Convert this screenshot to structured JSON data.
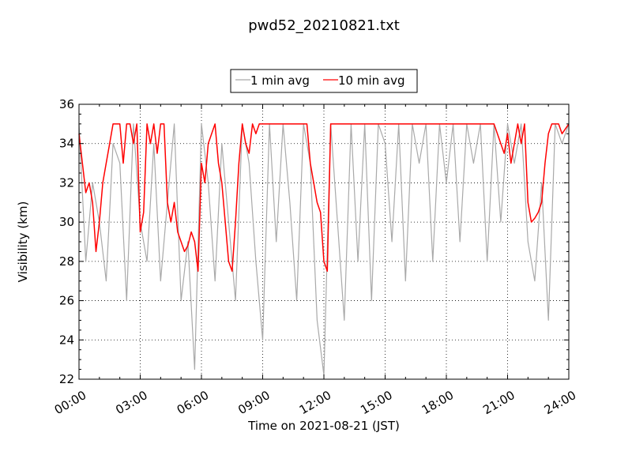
{
  "chart_data": {
    "type": "line",
    "title": "pwd52_20210821.txt",
    "xlabel": "Time on 2021-08-21 (JST)",
    "ylabel": "Visibility (km)",
    "xlim": [
      "00:00",
      "24:00"
    ],
    "ylim": [
      22,
      36
    ],
    "x_ticks": [
      "00:00",
      "03:00",
      "06:00",
      "09:00",
      "12:00",
      "15:00",
      "18:00",
      "21:00",
      "24:00"
    ],
    "y_ticks": [
      "22",
      "24",
      "26",
      "28",
      "30",
      "32",
      "34",
      "36"
    ],
    "grid": true,
    "legend_position": "top-center",
    "series": [
      {
        "name": "1 min avg",
        "color": "#a9a9a9",
        "x": [
          "00:00",
          "00:20",
          "00:40",
          "01:00",
          "01:20",
          "01:40",
          "02:00",
          "02:20",
          "02:40",
          "03:00",
          "03:20",
          "03:40",
          "04:00",
          "04:20",
          "04:40",
          "05:00",
          "05:20",
          "05:40",
          "06:00",
          "06:20",
          "06:40",
          "07:00",
          "07:20",
          "07:40",
          "08:00",
          "08:20",
          "08:40",
          "09:00",
          "09:20",
          "09:40",
          "10:00",
          "10:20",
          "10:40",
          "11:00",
          "11:20",
          "11:40",
          "12:00",
          "12:20",
          "12:40",
          "13:00",
          "13:20",
          "13:40",
          "14:00",
          "14:20",
          "14:40",
          "15:00",
          "15:20",
          "15:40",
          "16:00",
          "16:20",
          "16:40",
          "17:00",
          "17:20",
          "17:40",
          "18:00",
          "18:20",
          "18:40",
          "19:00",
          "19:20",
          "19:40",
          "20:00",
          "20:20",
          "20:40",
          "21:00",
          "21:20",
          "21:40",
          "22:00",
          "22:20",
          "22:40",
          "23:00",
          "23:20",
          "23:40",
          "24:00"
        ],
        "y": [
          35,
          28,
          32,
          30,
          27,
          34,
          33,
          26,
          35,
          30,
          28,
          34,
          27,
          31,
          35,
          26,
          29,
          22.5,
          35,
          32,
          27,
          34,
          30,
          26,
          35,
          33,
          28,
          24,
          35,
          29,
          35,
          31,
          26,
          35,
          33,
          25,
          22.2,
          35,
          30,
          25,
          35,
          28,
          35,
          26,
          35,
          34,
          29,
          35,
          27,
          35,
          33,
          35,
          28,
          35,
          32,
          35,
          29,
          35,
          33,
          35,
          28,
          35,
          30,
          35,
          33,
          35,
          29,
          27,
          32,
          25,
          35,
          34,
          35
        ]
      },
      {
        "name": "10 min avg",
        "color": "#ff0000",
        "x": [
          "00:00",
          "00:10",
          "00:20",
          "00:30",
          "00:40",
          "00:50",
          "01:00",
          "01:10",
          "01:20",
          "01:30",
          "01:40",
          "01:50",
          "02:00",
          "02:10",
          "02:20",
          "02:30",
          "02:40",
          "02:50",
          "03:00",
          "03:10",
          "03:20",
          "03:30",
          "03:40",
          "03:50",
          "04:00",
          "04:10",
          "04:20",
          "04:30",
          "04:40",
          "04:50",
          "05:00",
          "05:10",
          "05:20",
          "05:30",
          "05:40",
          "05:50",
          "06:00",
          "06:10",
          "06:20",
          "06:30",
          "06:40",
          "06:50",
          "07:00",
          "07:10",
          "07:20",
          "07:30",
          "07:40",
          "07:50",
          "08:00",
          "08:10",
          "08:20",
          "08:30",
          "08:40",
          "08:50",
          "09:00",
          "09:10",
          "09:20",
          "09:30",
          "09:40",
          "09:50",
          "10:00",
          "10:30",
          "11:00",
          "11:10",
          "11:20",
          "11:30",
          "11:40",
          "11:50",
          "12:00",
          "12:10",
          "12:20",
          "12:40",
          "13:00",
          "13:20",
          "13:40",
          "14:00",
          "14:20",
          "14:40",
          "15:00",
          "15:30",
          "16:00",
          "17:00",
          "18:00",
          "19:00",
          "20:00",
          "20:20",
          "20:40",
          "20:50",
          "21:00",
          "21:10",
          "21:20",
          "21:30",
          "21:40",
          "21:50",
          "22:00",
          "22:10",
          "22:20",
          "22:30",
          "22:40",
          "22:50",
          "23:00",
          "23:10",
          "23:20",
          "23:30",
          "23:40",
          "24:00"
        ],
        "y": [
          34.5,
          33,
          31.5,
          32,
          31,
          28.5,
          30,
          32,
          33,
          34,
          35,
          35,
          35,
          33,
          35,
          35,
          34,
          35,
          29.5,
          30.5,
          35,
          34,
          35,
          33.5,
          35,
          35,
          31,
          30,
          31,
          29.5,
          29,
          28.5,
          28.8,
          29.5,
          29,
          27.5,
          33,
          32,
          34,
          34.5,
          35,
          33,
          32,
          30,
          28,
          27.5,
          30,
          33,
          35,
          34,
          33.5,
          35,
          34.5,
          35,
          35,
          35,
          35,
          35,
          35,
          35,
          35,
          35,
          35,
          35,
          33,
          32,
          31,
          30.5,
          28,
          27.5,
          35,
          35,
          35,
          35,
          35,
          35,
          35,
          35,
          35,
          35,
          35,
          35,
          35,
          35,
          35,
          35,
          34,
          33.5,
          34.5,
          33,
          34,
          35,
          34,
          35,
          31,
          30,
          30.2,
          30.5,
          31,
          33,
          34.5,
          35,
          35,
          35,
          34.5,
          35
        ]
      }
    ]
  }
}
